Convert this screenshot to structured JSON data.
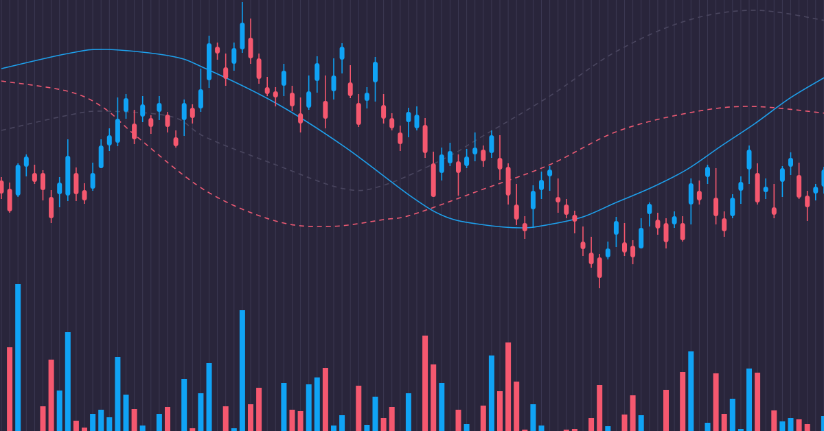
{
  "chart_data": {
    "type": "candlestick",
    "title": "",
    "xlabel": "",
    "ylabel": "",
    "grid": "vertical",
    "legend": "none",
    "colors": {
      "background": "#29253b",
      "grid": "#3b3852",
      "up": "#10a3f5",
      "down": "#f5586f",
      "ma_fast": "#1ea0ec",
      "ma_mid": "#ee5a73",
      "ma_slow": "#4a465f"
    },
    "price_ylim": [
      -128,
      500
    ],
    "volume_ylim": [
      0,
      628
    ],
    "candles": [
      [
        237,
        242,
        210,
        218
      ],
      [
        225,
        234,
        190,
        192
      ],
      [
        215,
        262,
        213,
        260
      ],
      [
        257,
        275,
        243,
        272
      ],
      [
        248,
        260,
        232,
        235
      ],
      [
        248,
        252,
        208,
        223
      ],
      [
        213,
        223,
        175,
        182
      ],
      [
        217,
        242,
        198,
        234
      ],
      [
        215,
        297,
        207,
        273
      ],
      [
        248,
        256,
        207,
        217
      ],
      [
        223,
        233,
        203,
        208
      ],
      [
        225,
        263,
        222,
        248
      ],
      [
        255,
        297,
        255,
        288
      ],
      [
        288,
        313,
        280,
        303
      ],
      [
        292,
        358,
        287,
        327
      ],
      [
        337,
        363,
        327,
        357
      ],
      [
        320,
        340,
        290,
        297
      ],
      [
        330,
        360,
        322,
        348
      ],
      [
        328,
        332,
        305,
        315
      ],
      [
        337,
        360,
        325,
        350
      ],
      [
        333,
        337,
        307,
        315
      ],
      [
        300,
        310,
        285,
        287
      ],
      [
        325,
        355,
        302,
        350
      ],
      [
        343,
        348,
        320,
        328
      ],
      [
        342,
        400,
        337,
        370
      ],
      [
        383,
        448,
        372,
        437
      ],
      [
        432,
        438,
        413,
        422
      ],
      [
        402,
        422,
        375,
        385
      ],
      [
        407,
        438,
        397,
        430
      ],
      [
        428,
        497,
        423,
        467
      ],
      [
        445,
        473,
        407,
        415
      ],
      [
        415,
        422,
        378,
        385
      ],
      [
        373,
        388,
        360,
        363
      ],
      [
        367,
        373,
        345,
        358
      ],
      [
        375,
        407,
        360,
        397
      ],
      [
        365,
        375,
        338,
        345
      ],
      [
        335,
        358,
        307,
        320
      ],
      [
        343,
        390,
        340,
        367
      ],
      [
        382,
        418,
        365,
        408
      ],
      [
        353,
        390,
        313,
        327
      ],
      [
        367,
        415,
        355,
        390
      ],
      [
        413,
        437,
        393,
        432
      ],
      [
        380,
        405,
        357,
        360
      ],
      [
        350,
        363,
        315,
        318
      ],
      [
        353,
        373,
        342,
        365
      ],
      [
        380,
        417,
        352,
        410
      ],
      [
        347,
        363,
        320,
        327
      ],
      [
        328,
        335,
        310,
        313
      ],
      [
        307,
        317,
        280,
        290
      ],
      [
        322,
        343,
        300,
        337
      ],
      [
        313,
        345,
        310,
        333
      ],
      [
        318,
        328,
        270,
        277
      ],
      [
        262,
        279,
        213,
        213
      ],
      [
        248,
        285,
        237,
        275
      ],
      [
        262,
        292,
        258,
        280
      ],
      [
        265,
        275,
        215,
        248
      ],
      [
        258,
        283,
        255,
        272
      ],
      [
        275,
        307,
        265,
        285
      ],
      [
        282,
        288,
        257,
        265
      ],
      [
        277,
        310,
        270,
        303
      ],
      [
        270,
        303,
        238,
        253
      ],
      [
        257,
        262,
        202,
        215
      ],
      [
        202,
        232,
        172,
        180
      ],
      [
        175,
        185,
        152,
        163
      ],
      [
        195,
        230,
        168,
        222
      ],
      [
        223,
        250,
        210,
        238
      ],
      [
        243,
        258,
        222,
        253
      ],
      [
        213,
        240,
        190,
        205
      ],
      [
        202,
        210,
        182,
        187
      ],
      [
        187,
        193,
        160,
        177
      ],
      [
        148,
        170,
        127,
        137
      ],
      [
        132,
        155,
        110,
        115
      ],
      [
        125,
        130,
        80,
        95
      ],
      [
        125,
        148,
        122,
        138
      ],
      [
        158,
        184,
        140,
        178
      ],
      [
        147,
        175,
        127,
        132
      ],
      [
        142,
        150,
        115,
        125
      ],
      [
        138,
        182,
        138,
        168
      ],
      [
        188,
        205,
        170,
        203
      ],
      [
        180,
        190,
        158,
        167
      ],
      [
        175,
        182,
        138,
        147
      ],
      [
        173,
        192,
        168,
        185
      ],
      [
        175,
        185,
        148,
        150
      ],
      [
        202,
        240,
        173,
        233
      ],
      [
        222,
        237,
        202,
        208
      ],
      [
        242,
        260,
        232,
        257
      ],
      [
        212,
        255,
        173,
        185
      ],
      [
        182,
        192,
        155,
        163
      ],
      [
        185,
        217,
        182,
        212
      ],
      [
        222,
        243,
        203,
        235
      ],
      [
        253,
        288,
        232,
        282
      ],
      [
        248,
        262,
        202,
        205
      ],
      [
        220,
        240,
        210,
        228
      ],
      [
        198,
        232,
        182,
        187
      ],
      [
        235,
        258,
        213,
        255
      ],
      [
        257,
        278,
        245,
        270
      ],
      [
        245,
        263,
        210,
        212
      ],
      [
        215,
        222,
        178,
        198
      ],
      [
        218,
        232,
        208,
        228
      ],
      [
        228,
        257,
        218,
        253
      ]
    ],
    "volumes": [
      0,
      122,
      214,
      0,
      0,
      36,
      104,
      59,
      144,
      15,
      5,
      25,
      31,
      20,
      108,
      53,
      32,
      8,
      0,
      25,
      35,
      0,
      76,
      4,
      55,
      99,
      0,
      36,
      4,
      176,
      39,
      63,
      0,
      0,
      70,
      31,
      29,
      68,
      78,
      92,
      8,
      23,
      0,
      66,
      9,
      50,
      19,
      35,
      0,
      55,
      0,
      139,
      97,
      70,
      0,
      31,
      10,
      0,
      37,
      110,
      58,
      129,
      72,
      2,
      39,
      8,
      0,
      0,
      2,
      3,
      0,
      19,
      67,
      7,
      0,
      24,
      52,
      23,
      0,
      0,
      60,
      0,
      86,
      116,
      0,
      12,
      84,
      25,
      47,
      3,
      91,
      85,
      0,
      30,
      14,
      19,
      17,
      10,
      0,
      22
    ],
    "lines": [
      {
        "style": "solid",
        "color": "#1ea0ec",
        "points": [
          [
            0,
            400
          ],
          [
            8,
            422
          ],
          [
            12.6,
            428
          ],
          [
            20.5,
            418
          ],
          [
            24.6,
            400
          ],
          [
            33,
            350
          ],
          [
            41.2,
            287
          ],
          [
            49.4,
            213
          ],
          [
            53.5,
            184
          ],
          [
            57.7,
            173
          ],
          [
            62.6,
            168
          ],
          [
            66,
            173
          ],
          [
            70,
            184
          ],
          [
            74,
            205
          ],
          [
            78.3,
            227
          ],
          [
            82.5,
            253
          ],
          [
            86.6,
            287
          ],
          [
            90.7,
            320
          ],
          [
            94.9,
            357
          ],
          [
            99.2,
            388
          ]
        ]
      },
      {
        "style": "dashed",
        "color": "#ee5a73",
        "points": [
          [
            0,
            382
          ],
          [
            8,
            367
          ],
          [
            12.3,
            343
          ],
          [
            16.4,
            300
          ],
          [
            24.6,
            222
          ],
          [
            33,
            178
          ],
          [
            39.5,
            170
          ],
          [
            46,
            180
          ],
          [
            49.4,
            187
          ],
          [
            57.7,
            223
          ],
          [
            66,
            260
          ],
          [
            74,
            308
          ],
          [
            82.5,
            335
          ],
          [
            90,
            345
          ],
          [
            99.2,
            335
          ]
        ]
      },
      {
        "style": "dashed",
        "color": "#4a465f",
        "points": [
          [
            0,
            310
          ],
          [
            8,
            332
          ],
          [
            12.3,
            338
          ],
          [
            20.5,
            330
          ],
          [
            24.6,
            300
          ],
          [
            33,
            260
          ],
          [
            41.2,
            225
          ],
          [
            46,
            230
          ],
          [
            53.5,
            270
          ],
          [
            57.7,
            300
          ],
          [
            66,
            360
          ],
          [
            74,
            425
          ],
          [
            82.5,
            470
          ],
          [
            90.7,
            485
          ],
          [
            99.2,
            470
          ]
        ]
      }
    ]
  }
}
